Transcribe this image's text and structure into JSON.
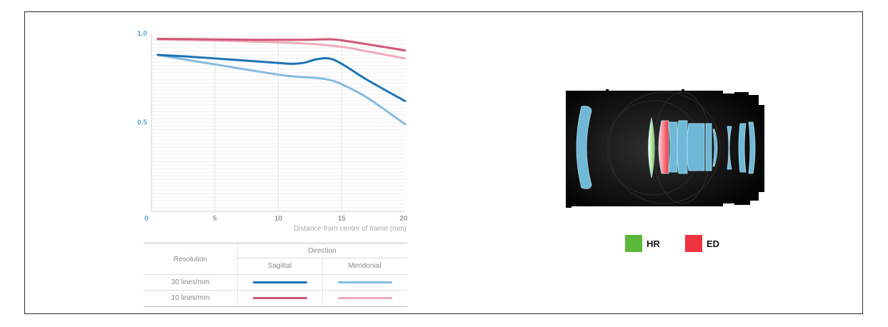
{
  "chart_data": {
    "type": "line",
    "title": "",
    "xlabel": "Distance from center of frame (mm)",
    "ylabel": "",
    "xlim": [
      0,
      20
    ],
    "ylim": [
      0,
      1.0
    ],
    "x_ticks": [
      "0",
      "5",
      "10",
      "15",
      "20"
    ],
    "y_ticks": [
      "0",
      "0.5",
      "1.0"
    ],
    "series": [
      {
        "id": "s30",
        "color": "#1c74b6",
        "width": 3,
        "x": [
          0.5,
          3,
          6,
          9,
          11,
          12,
          13,
          14,
          15,
          17,
          20
        ],
        "y": [
          0.88,
          0.87,
          0.855,
          0.84,
          0.83,
          0.835,
          0.855,
          0.86,
          0.83,
          0.74,
          0.62
        ]
      },
      {
        "id": "m30",
        "color": "#85bbdf",
        "width": 3,
        "x": [
          0.5,
          3,
          6,
          9,
          11,
          13,
          14,
          15,
          17,
          20
        ],
        "y": [
          0.88,
          0.85,
          0.815,
          0.78,
          0.76,
          0.75,
          0.74,
          0.715,
          0.64,
          0.49
        ]
      },
      {
        "id": "s10",
        "color": "#cf5778",
        "width": 3,
        "x": [
          0.5,
          4,
          8,
          12,
          14,
          15,
          17,
          20
        ],
        "y": [
          0.97,
          0.968,
          0.965,
          0.965,
          0.968,
          0.962,
          0.94,
          0.905
        ]
      },
      {
        "id": "m10",
        "color": "#eeaabd",
        "width": 3,
        "x": [
          0.5,
          4,
          8,
          12,
          15,
          17,
          20
        ],
        "y": [
          0.968,
          0.962,
          0.955,
          0.945,
          0.925,
          0.9,
          0.86
        ]
      }
    ]
  },
  "legend": {
    "resolution_header": "Resolution",
    "direction_header": "Direction",
    "sagittal": "Sagittal",
    "meridional": "Meridonial",
    "row1": "30 lines/mm",
    "row2": "10 lines/mm"
  },
  "lens_key": {
    "hr_label": "HR",
    "hr_color": "#5bb83b",
    "ed_label": "ED",
    "ed_color": "#ee3440"
  },
  "lens_colors": {
    "body": "#0a0a0a",
    "element": "#6fb8d8",
    "element_edge": "#a8dbef"
  }
}
